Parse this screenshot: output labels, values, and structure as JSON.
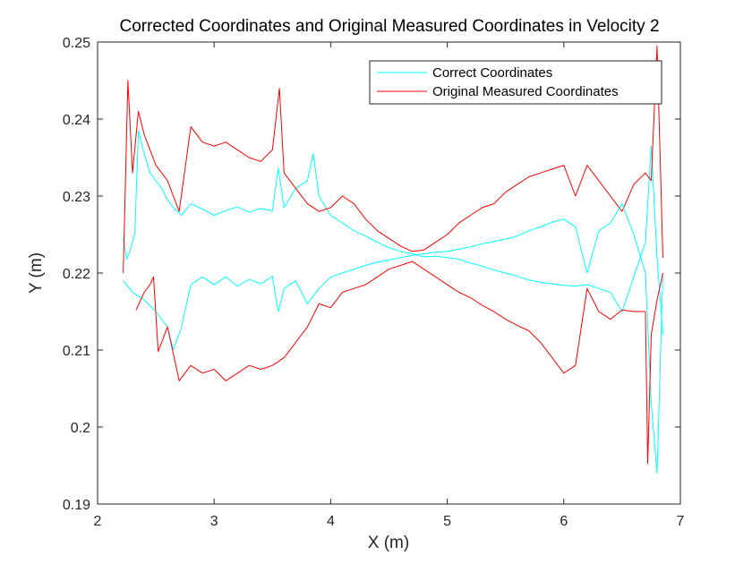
{
  "chart_data": {
    "type": "line",
    "title": "Corrected Coordinates and Original Measured Coordinates in Velocity 2",
    "xlabel": "X (m)",
    "ylabel": "Y (m)",
    "xlim": [
      2,
      7
    ],
    "ylim": [
      0.19,
      0.25
    ],
    "xticks": [
      "2",
      "3",
      "4",
      "5",
      "6",
      "7"
    ],
    "yticks": [
      "0.19",
      "0.2",
      "0.21",
      "0.22",
      "0.23",
      "0.24",
      "0.25"
    ],
    "grid": false,
    "legend_position": "top-right",
    "series": [
      {
        "name": "Correct Coordinates",
        "color": "#00FFFF",
        "values": [
          [
            2.22,
            0.2245
          ],
          [
            2.25,
            0.2218
          ],
          [
            2.28,
            0.223
          ],
          [
            2.32,
            0.2252
          ],
          [
            2.35,
            0.2385
          ],
          [
            2.4,
            0.2355
          ],
          [
            2.45,
            0.233
          ],
          [
            2.5,
            0.232
          ],
          [
            2.55,
            0.231
          ],
          [
            2.6,
            0.2295
          ],
          [
            2.65,
            0.2285
          ],
          [
            2.72,
            0.2275
          ],
          [
            2.8,
            0.229
          ],
          [
            2.9,
            0.2283
          ],
          [
            3.0,
            0.2275
          ],
          [
            3.1,
            0.2281
          ],
          [
            3.2,
            0.2286
          ],
          [
            3.3,
            0.2279
          ],
          [
            3.4,
            0.2284
          ],
          [
            3.5,
            0.2281
          ],
          [
            3.55,
            0.2336
          ],
          [
            3.6,
            0.2285
          ],
          [
            3.7,
            0.231
          ],
          [
            3.8,
            0.232
          ],
          [
            3.85,
            0.2355
          ],
          [
            3.9,
            0.23
          ],
          [
            4.0,
            0.2275
          ],
          [
            4.1,
            0.2265
          ],
          [
            4.2,
            0.2255
          ],
          [
            4.3,
            0.2248
          ],
          [
            4.4,
            0.224
          ],
          [
            4.5,
            0.2233
          ],
          [
            4.6,
            0.2228
          ],
          [
            4.7,
            0.2225
          ],
          [
            4.8,
            0.2221
          ],
          [
            4.9,
            0.2222
          ],
          [
            5.0,
            0.222
          ],
          [
            5.1,
            0.2218
          ],
          [
            5.2,
            0.2213
          ],
          [
            5.3,
            0.2209
          ],
          [
            5.4,
            0.2204
          ],
          [
            5.5,
            0.22
          ],
          [
            5.6,
            0.2196
          ],
          [
            5.7,
            0.2191
          ],
          [
            5.8,
            0.2188
          ],
          [
            5.9,
            0.2186
          ],
          [
            6.0,
            0.2184
          ],
          [
            6.1,
            0.2183
          ],
          [
            6.2,
            0.2185
          ],
          [
            6.3,
            0.218
          ],
          [
            6.4,
            0.2175
          ],
          [
            6.5,
            0.215
          ],
          [
            6.6,
            0.2195
          ],
          [
            6.7,
            0.224
          ],
          [
            6.75,
            0.2365
          ],
          [
            6.8,
            0.222
          ],
          [
            6.85,
            0.212
          ]
        ]
      },
      {
        "name": "Original Measured Coordinates",
        "color": "#FF0000",
        "values": [
          [
            2.22,
            0.22
          ],
          [
            2.26,
            0.245
          ],
          [
            2.3,
            0.233
          ],
          [
            2.35,
            0.241
          ],
          [
            2.4,
            0.238
          ],
          [
            2.5,
            0.234
          ],
          [
            2.6,
            0.232
          ],
          [
            2.7,
            0.228
          ],
          [
            2.8,
            0.239
          ],
          [
            2.9,
            0.237
          ],
          [
            3.0,
            0.2365
          ],
          [
            3.1,
            0.237
          ],
          [
            3.2,
            0.236
          ],
          [
            3.3,
            0.235
          ],
          [
            3.4,
            0.2345
          ],
          [
            3.5,
            0.236
          ],
          [
            3.56,
            0.244
          ],
          [
            3.6,
            0.233
          ],
          [
            3.7,
            0.231
          ],
          [
            3.8,
            0.229
          ],
          [
            3.9,
            0.228
          ],
          [
            4.0,
            0.2285
          ],
          [
            4.1,
            0.23
          ],
          [
            4.2,
            0.229
          ],
          [
            4.3,
            0.227
          ],
          [
            4.4,
            0.2255
          ],
          [
            4.5,
            0.2245
          ],
          [
            4.6,
            0.2235
          ],
          [
            4.7,
            0.2228
          ],
          [
            4.8,
            0.223
          ],
          [
            4.9,
            0.224
          ],
          [
            5.0,
            0.225
          ],
          [
            5.1,
            0.2265
          ],
          [
            5.2,
            0.2275
          ],
          [
            5.3,
            0.2285
          ],
          [
            5.4,
            0.229
          ],
          [
            5.5,
            0.2305
          ],
          [
            5.6,
            0.2315
          ],
          [
            5.7,
            0.2325
          ],
          [
            5.8,
            0.233
          ],
          [
            5.9,
            0.2335
          ],
          [
            6.0,
            0.234
          ],
          [
            6.1,
            0.23
          ],
          [
            6.2,
            0.234
          ],
          [
            6.3,
            0.232
          ],
          [
            6.4,
            0.23
          ],
          [
            6.5,
            0.228
          ],
          [
            6.6,
            0.2315
          ],
          [
            6.7,
            0.233
          ],
          [
            6.75,
            0.232
          ],
          [
            6.8,
            0.2495
          ],
          [
            6.85,
            0.222
          ]
        ]
      },
      {
        "name": "",
        "color": "#00FFFF",
        "values": [
          [
            2.22,
            0.219
          ],
          [
            2.3,
            0.2175
          ],
          [
            2.4,
            0.2165
          ],
          [
            2.5,
            0.215
          ],
          [
            2.6,
            0.213
          ],
          [
            2.65,
            0.21
          ],
          [
            2.72,
            0.213
          ],
          [
            2.8,
            0.2185
          ],
          [
            2.9,
            0.2195
          ],
          [
            3.0,
            0.2185
          ],
          [
            3.1,
            0.2195
          ],
          [
            3.2,
            0.2183
          ],
          [
            3.3,
            0.2192
          ],
          [
            3.4,
            0.2186
          ],
          [
            3.5,
            0.2196
          ],
          [
            3.55,
            0.215
          ],
          [
            3.6,
            0.218
          ],
          [
            3.7,
            0.219
          ],
          [
            3.8,
            0.216
          ],
          [
            3.9,
            0.218
          ],
          [
            4.0,
            0.2195
          ],
          [
            4.1,
            0.22
          ],
          [
            4.2,
            0.2205
          ],
          [
            4.3,
            0.221
          ],
          [
            4.4,
            0.2214
          ],
          [
            4.5,
            0.2217
          ],
          [
            4.6,
            0.222
          ],
          [
            4.7,
            0.2223
          ],
          [
            4.8,
            0.2225
          ],
          [
            4.9,
            0.2227
          ],
          [
            5.0,
            0.2228
          ],
          [
            5.1,
            0.2231
          ],
          [
            5.2,
            0.2234
          ],
          [
            5.3,
            0.2238
          ],
          [
            5.4,
            0.2241
          ],
          [
            5.5,
            0.2244
          ],
          [
            5.6,
            0.2248
          ],
          [
            5.7,
            0.2255
          ],
          [
            5.8,
            0.226
          ],
          [
            5.9,
            0.2266
          ],
          [
            6.0,
            0.227
          ],
          [
            6.1,
            0.226
          ],
          [
            6.2,
            0.22
          ],
          [
            6.3,
            0.2255
          ],
          [
            6.4,
            0.2265
          ],
          [
            6.5,
            0.229
          ],
          [
            6.6,
            0.225
          ],
          [
            6.7,
            0.22
          ],
          [
            6.75,
            0.203
          ],
          [
            6.8,
            0.194
          ],
          [
            6.85,
            0.22
          ]
        ]
      },
      {
        "name": "",
        "color": "#FF0000",
        "values": [
          [
            2.33,
            0.2152
          ],
          [
            2.4,
            0.2175
          ],
          [
            2.45,
            0.2185
          ],
          [
            2.48,
            0.2195
          ],
          [
            2.52,
            0.2098
          ],
          [
            2.6,
            0.213
          ],
          [
            2.7,
            0.206
          ],
          [
            2.8,
            0.208
          ],
          [
            2.9,
            0.207
          ],
          [
            3.0,
            0.2075
          ],
          [
            3.1,
            0.206
          ],
          [
            3.2,
            0.207
          ],
          [
            3.3,
            0.208
          ],
          [
            3.4,
            0.2075
          ],
          [
            3.5,
            0.208
          ],
          [
            3.6,
            0.209
          ],
          [
            3.7,
            0.211
          ],
          [
            3.8,
            0.213
          ],
          [
            3.9,
            0.216
          ],
          [
            4.0,
            0.2155
          ],
          [
            4.1,
            0.2175
          ],
          [
            4.2,
            0.218
          ],
          [
            4.3,
            0.2185
          ],
          [
            4.4,
            0.2195
          ],
          [
            4.5,
            0.2205
          ],
          [
            4.6,
            0.221
          ],
          [
            4.7,
            0.2215
          ],
          [
            4.8,
            0.2205
          ],
          [
            4.9,
            0.2195
          ],
          [
            5.0,
            0.2185
          ],
          [
            5.1,
            0.2175
          ],
          [
            5.2,
            0.2168
          ],
          [
            5.3,
            0.2158
          ],
          [
            5.4,
            0.215
          ],
          [
            5.5,
            0.214
          ],
          [
            5.6,
            0.2132
          ],
          [
            5.7,
            0.2125
          ],
          [
            5.8,
            0.211
          ],
          [
            5.9,
            0.209
          ],
          [
            6.0,
            0.207
          ],
          [
            6.1,
            0.208
          ],
          [
            6.2,
            0.218
          ],
          [
            6.3,
            0.215
          ],
          [
            6.4,
            0.214
          ],
          [
            6.5,
            0.2152
          ],
          [
            6.6,
            0.215
          ],
          [
            6.7,
            0.215
          ],
          [
            6.72,
            0.1952
          ],
          [
            6.75,
            0.212
          ],
          [
            6.8,
            0.2165
          ],
          [
            6.85,
            0.22
          ]
        ]
      }
    ]
  }
}
